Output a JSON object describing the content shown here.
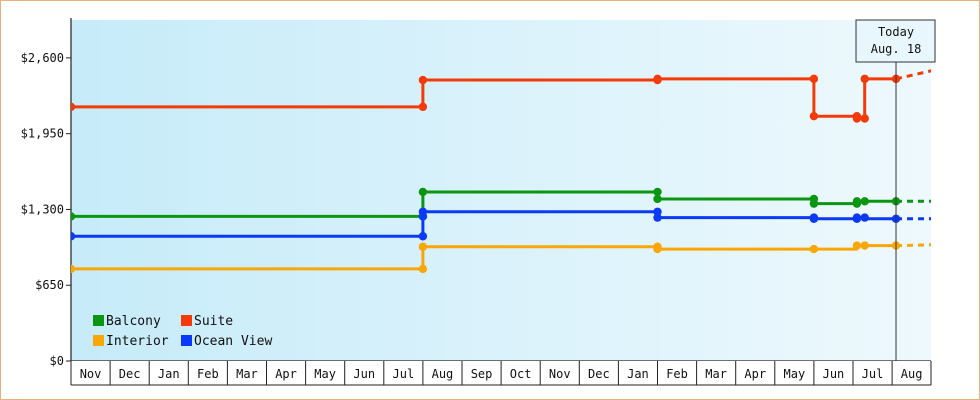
{
  "chart_data": {
    "type": "line",
    "title": "",
    "xlabel": "",
    "ylabel": "",
    "ylim": [
      0,
      2925
    ],
    "yticks": [
      {
        "value": 0,
        "label": "$0"
      },
      {
        "value": 650,
        "label": "$650"
      },
      {
        "value": 1300,
        "label": "$1,300"
      },
      {
        "value": 1950,
        "label": "$1,950"
      },
      {
        "value": 2600,
        "label": "$2,600"
      }
    ],
    "x_categories": [
      "Nov",
      "Dec",
      "Jan",
      "Feb",
      "Mar",
      "Apr",
      "May",
      "Jun",
      "Jul",
      "Aug",
      "Sep",
      "Oct",
      "Nov",
      "Dec",
      "Jan",
      "Feb",
      "Mar",
      "Apr",
      "May",
      "Jun",
      "Jul",
      "Aug"
    ],
    "x_range": [
      0,
      22.4
    ],
    "background_gradient": [
      "#c6ebf9",
      "#eef9fd"
    ],
    "grid": false,
    "legend_placement": "bottom-left",
    "today_marker": {
      "x": 21.1,
      "line1": "Today",
      "line2": "Aug. 18"
    },
    "series": [
      {
        "name": "Balcony",
        "color": "#0b9612",
        "step": true,
        "points": [
          [
            0,
            1240
          ],
          [
            9.0,
            1240
          ],
          [
            9.0,
            1450
          ],
          [
            15.0,
            1450
          ],
          [
            15.0,
            1390
          ],
          [
            19.0,
            1390
          ],
          [
            19.0,
            1350
          ],
          [
            20.1,
            1350
          ],
          [
            20.1,
            1370
          ],
          [
            20.3,
            1370
          ],
          [
            21.1,
            1370
          ]
        ],
        "markers": [
          [
            0,
            1240
          ],
          [
            9.0,
            1240
          ],
          [
            9.0,
            1450
          ],
          [
            15.0,
            1450
          ],
          [
            15.0,
            1390
          ],
          [
            19.0,
            1390
          ],
          [
            19.0,
            1350
          ],
          [
            20.1,
            1350
          ],
          [
            20.1,
            1370
          ],
          [
            20.3,
            1370
          ],
          [
            21.1,
            1370
          ]
        ],
        "projection": [
          [
            21.1,
            1370
          ],
          [
            22.4,
            1370
          ]
        ]
      },
      {
        "name": "Suite",
        "color": "#f43a08",
        "step": true,
        "points": [
          [
            0,
            2180
          ],
          [
            9.0,
            2180
          ],
          [
            9.0,
            2410
          ],
          [
            15.0,
            2410
          ],
          [
            15.0,
            2420
          ],
          [
            19.0,
            2420
          ],
          [
            19.0,
            2100
          ],
          [
            20.1,
            2100
          ],
          [
            20.1,
            2080
          ],
          [
            20.3,
            2080
          ],
          [
            20.3,
            2420
          ],
          [
            21.1,
            2420
          ]
        ],
        "markers": [
          [
            0,
            2180
          ],
          [
            9.0,
            2180
          ],
          [
            9.0,
            2410
          ],
          [
            15.0,
            2410
          ],
          [
            15.0,
            2420
          ],
          [
            19.0,
            2420
          ],
          [
            19.0,
            2100
          ],
          [
            20.1,
            2100
          ],
          [
            20.1,
            2080
          ],
          [
            20.3,
            2080
          ],
          [
            20.3,
            2420
          ],
          [
            21.1,
            2420
          ]
        ],
        "projection": [
          [
            21.1,
            2420
          ],
          [
            22.4,
            2520
          ]
        ]
      },
      {
        "name": "Interior",
        "color": "#f9a607",
        "step": true,
        "points": [
          [
            0,
            790
          ],
          [
            9.0,
            790
          ],
          [
            9.0,
            980
          ],
          [
            15.0,
            980
          ],
          [
            15.0,
            960
          ],
          [
            19.0,
            960
          ],
          [
            19.0,
            960
          ],
          [
            20.1,
            960
          ],
          [
            20.1,
            990
          ],
          [
            20.3,
            990
          ],
          [
            21.1,
            990
          ]
        ],
        "markers": [
          [
            0,
            790
          ],
          [
            9.0,
            790
          ],
          [
            9.0,
            980
          ],
          [
            15.0,
            980
          ],
          [
            15.0,
            960
          ],
          [
            19.0,
            960
          ],
          [
            20.1,
            990
          ],
          [
            20.3,
            990
          ],
          [
            21.1,
            990
          ]
        ],
        "projection": [
          [
            21.1,
            990
          ],
          [
            22.4,
            1000
          ]
        ]
      },
      {
        "name": "Ocean View",
        "color": "#0a3af8",
        "step": true,
        "points": [
          [
            0,
            1070
          ],
          [
            9.0,
            1070
          ],
          [
            9.0,
            1280
          ],
          [
            15.0,
            1280
          ],
          [
            15.0,
            1230
          ],
          [
            19.0,
            1230
          ],
          [
            19.0,
            1220
          ],
          [
            20.1,
            1220
          ],
          [
            20.1,
            1230
          ],
          [
            20.3,
            1230
          ],
          [
            20.3,
            1220
          ],
          [
            21.1,
            1220
          ]
        ],
        "markers": [
          [
            0,
            1070
          ],
          [
            9.0,
            1070
          ],
          [
            9.0,
            1240
          ],
          [
            9.0,
            1280
          ],
          [
            15.0,
            1280
          ],
          [
            15.0,
            1230
          ],
          [
            19.0,
            1230
          ],
          [
            19.0,
            1220
          ],
          [
            20.1,
            1220
          ],
          [
            20.1,
            1230
          ],
          [
            20.3,
            1230
          ],
          [
            21.1,
            1220
          ]
        ],
        "projection": [
          [
            21.1,
            1220
          ],
          [
            22.4,
            1220
          ]
        ]
      }
    ],
    "legend": [
      {
        "name": "Balcony",
        "color": "#0b9612"
      },
      {
        "name": "Suite",
        "color": "#f43a08"
      },
      {
        "name": "Interior",
        "color": "#f9a607"
      },
      {
        "name": "Ocean View",
        "color": "#0a3af8"
      }
    ]
  }
}
